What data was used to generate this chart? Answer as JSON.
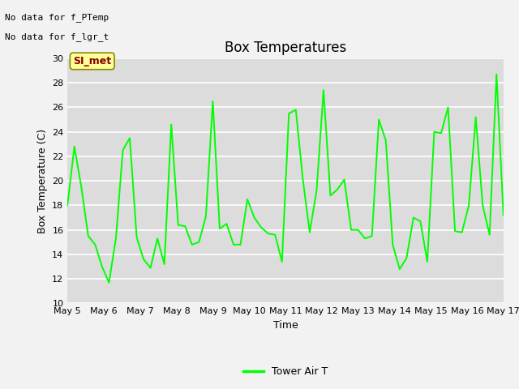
{
  "title": "Box Temperatures",
  "xlabel": "Time",
  "ylabel": "Box Temperature (C)",
  "ylim": [
    10,
    30
  ],
  "yticks": [
    10,
    12,
    14,
    16,
    18,
    20,
    22,
    24,
    26,
    28,
    30
  ],
  "line_color": "#00FF00",
  "line_width": 1.4,
  "bg_color": "#DCDCDC",
  "grid_color": "#FFFFFF",
  "fig_color": "#F2F2F2",
  "no_data_text1": "No data for f_PTemp",
  "no_data_text2": "No data for f_lgr_t",
  "si_met_label": "SI_met",
  "legend_label": "Tower Air T",
  "x_tick_labels": [
    "May 5",
    "May 6",
    "May 7",
    "May 8",
    "May 9",
    "May 10",
    "May 11",
    "May 12",
    "May 13",
    "May 14",
    "May 15",
    "May 16",
    "May 17"
  ],
  "y_data": [
    18.0,
    22.8,
    19.5,
    15.5,
    14.8,
    13.0,
    11.7,
    15.3,
    22.5,
    23.5,
    15.4,
    13.6,
    12.9,
    15.3,
    13.2,
    24.6,
    16.4,
    16.3,
    14.8,
    15.0,
    17.1,
    26.5,
    16.1,
    16.5,
    14.8,
    14.8,
    18.5,
    17.0,
    16.2,
    15.7,
    15.6,
    13.4,
    25.5,
    25.8,
    20.2,
    15.8,
    19.2,
    27.4,
    18.8,
    19.3,
    20.1,
    16.0,
    16.0,
    15.3,
    15.5,
    25.0,
    23.3,
    14.8,
    12.8,
    13.7,
    17.0,
    16.7,
    13.4,
    24.0,
    23.9,
    26.0,
    15.9,
    15.8,
    18.0,
    25.2,
    18.0,
    15.6,
    28.7,
    17.2
  ]
}
